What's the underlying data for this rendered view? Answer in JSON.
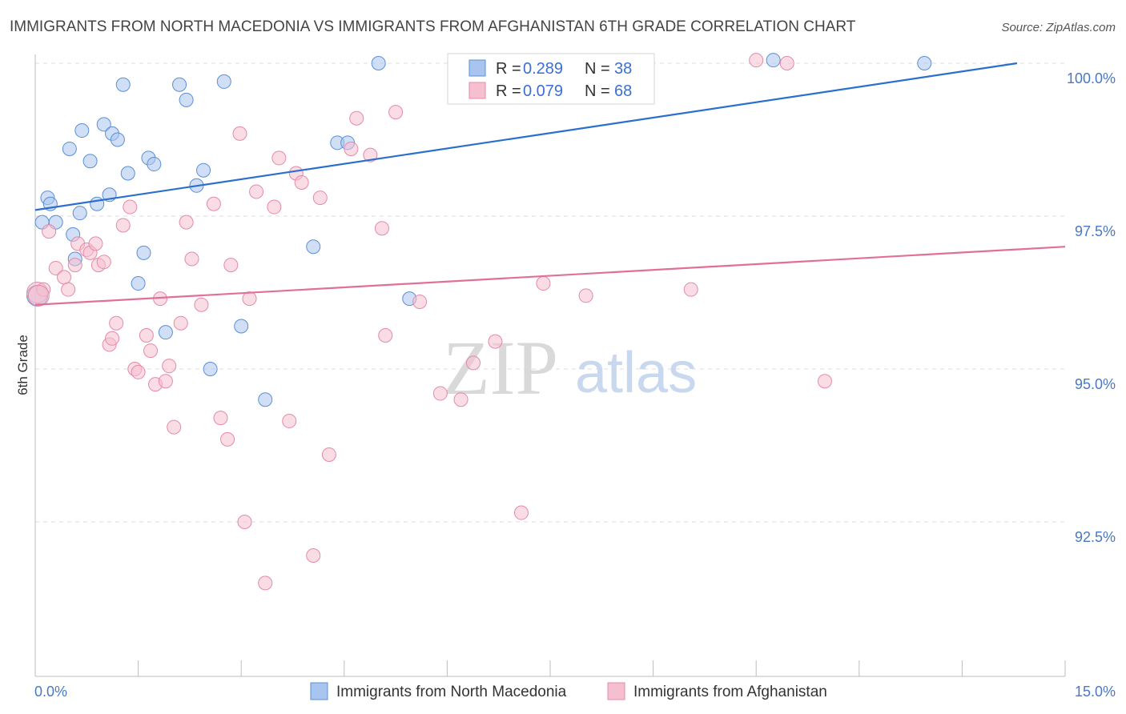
{
  "title": "IMMIGRANTS FROM NORTH MACEDONIA VS IMMIGRANTS FROM AFGHANISTAN 6TH GRADE CORRELATION CHART",
  "source": "Source: ZipAtlas.com",
  "watermark": {
    "zip": "ZIP",
    "atlas": "atlas"
  },
  "colors": {
    "blue_fill": "#a9c5ef",
    "blue_stroke": "#5b8fd6",
    "blue_line": "#2a6fce",
    "pink_fill": "#f6bfd0",
    "pink_stroke": "#e58aa8",
    "pink_line": "#e0709a",
    "grid": "#dcdcdc",
    "axis_text": "#4a78c4"
  },
  "legend_box": {
    "rows": [
      {
        "r_label": "R =",
        "r_value": "0.289",
        "n_label": "N =",
        "n_value": "38"
      },
      {
        "r_label": "R =",
        "r_value": "0.079",
        "n_label": "N =",
        "n_value": "68"
      }
    ]
  },
  "chart_data": {
    "type": "scatter",
    "title": "IMMIGRANTS FROM NORTH MACEDONIA VS IMMIGRANTS FROM AFGHANISTAN 6TH GRADE CORRELATION CHART",
    "xlabel": "",
    "ylabel": "6th Grade",
    "xlim": [
      0,
      15
    ],
    "ylim": [
      90.2,
      100.4
    ],
    "x_tick_labels": [
      {
        "value": 0,
        "label": "0.0%"
      },
      {
        "value": 15,
        "label": "15.0%"
      }
    ],
    "x_minor_ticks": [
      1.5,
      3.0,
      4.5,
      6.0,
      7.5,
      9.0,
      10.5,
      12.0,
      13.5,
      15.0
    ],
    "y_ticks": [
      {
        "value": 100.0,
        "label": "100.0%"
      },
      {
        "value": 97.5,
        "label": "97.5%"
      },
      {
        "value": 95.0,
        "label": "95.0%"
      },
      {
        "value": 92.5,
        "label": "92.5%"
      }
    ],
    "grid": true,
    "legend_position": "bottom",
    "series": [
      {
        "name": "Immigrants from North Macedonia",
        "color": "blue",
        "r": 0.289,
        "n": 38,
        "trend": {
          "x": [
            0,
            14.3
          ],
          "y": [
            97.6,
            100.0
          ]
        },
        "points": [
          [
            0.03,
            96.2
          ],
          [
            0.1,
            97.4
          ],
          [
            0.18,
            97.8
          ],
          [
            0.22,
            97.7
          ],
          [
            0.3,
            97.4
          ],
          [
            0.5,
            98.6
          ],
          [
            0.55,
            97.2
          ],
          [
            0.58,
            96.8
          ],
          [
            0.68,
            98.9
          ],
          [
            0.65,
            97.55
          ],
          [
            0.8,
            98.4
          ],
          [
            0.9,
            97.7
          ],
          [
            1.0,
            99.0
          ],
          [
            1.08,
            97.85
          ],
          [
            1.12,
            98.85
          ],
          [
            1.2,
            98.75
          ],
          [
            1.28,
            99.65
          ],
          [
            1.35,
            98.2
          ],
          [
            1.5,
            96.4
          ],
          [
            1.58,
            96.9
          ],
          [
            1.65,
            98.45
          ],
          [
            1.73,
            98.35
          ],
          [
            1.9,
            95.6
          ],
          [
            2.1,
            99.65
          ],
          [
            2.2,
            99.4
          ],
          [
            2.35,
            98.0
          ],
          [
            2.45,
            98.25
          ],
          [
            2.55,
            95.0
          ],
          [
            2.75,
            99.7
          ],
          [
            3.0,
            95.7
          ],
          [
            3.35,
            94.5
          ],
          [
            4.05,
            97.0
          ],
          [
            4.4,
            98.7
          ],
          [
            4.55,
            98.7
          ],
          [
            5.0,
            100.0
          ],
          [
            5.45,
            96.15
          ],
          [
            10.75,
            100.05
          ],
          [
            12.95,
            100.0
          ]
        ]
      },
      {
        "name": "Immigrants from Afghanistan",
        "color": "pink",
        "r": 0.079,
        "n": 68,
        "trend": {
          "x": [
            0,
            15
          ],
          "y": [
            96.05,
            97.0
          ]
        },
        "points": [
          [
            0.03,
            96.25
          ],
          [
            0.12,
            96.3
          ],
          [
            0.2,
            97.25
          ],
          [
            0.3,
            96.65
          ],
          [
            0.42,
            96.5
          ],
          [
            0.48,
            96.3
          ],
          [
            0.58,
            96.7
          ],
          [
            0.62,
            97.05
          ],
          [
            0.75,
            96.95
          ],
          [
            0.8,
            96.9
          ],
          [
            0.88,
            97.05
          ],
          [
            0.92,
            96.7
          ],
          [
            1.0,
            96.75
          ],
          [
            1.08,
            95.4
          ],
          [
            1.12,
            95.5
          ],
          [
            1.18,
            95.75
          ],
          [
            1.28,
            97.35
          ],
          [
            1.38,
            97.65
          ],
          [
            1.45,
            95.0
          ],
          [
            1.5,
            94.95
          ],
          [
            1.62,
            95.55
          ],
          [
            1.68,
            95.3
          ],
          [
            1.75,
            94.75
          ],
          [
            1.82,
            96.15
          ],
          [
            1.9,
            94.8
          ],
          [
            1.95,
            95.05
          ],
          [
            2.02,
            94.05
          ],
          [
            2.12,
            95.75
          ],
          [
            2.2,
            97.4
          ],
          [
            2.28,
            96.8
          ],
          [
            2.42,
            96.05
          ],
          [
            2.6,
            97.7
          ],
          [
            2.7,
            94.2
          ],
          [
            2.8,
            93.85
          ],
          [
            2.85,
            96.7
          ],
          [
            2.98,
            98.85
          ],
          [
            3.05,
            92.5
          ],
          [
            3.12,
            96.15
          ],
          [
            3.22,
            97.9
          ],
          [
            3.35,
            91.5
          ],
          [
            3.48,
            97.65
          ],
          [
            3.55,
            98.45
          ],
          [
            3.7,
            94.15
          ],
          [
            3.8,
            98.2
          ],
          [
            3.88,
            98.05
          ],
          [
            4.05,
            91.95
          ],
          [
            4.15,
            97.8
          ],
          [
            4.28,
            93.6
          ],
          [
            4.6,
            98.6
          ],
          [
            4.68,
            99.1
          ],
          [
            4.88,
            98.5
          ],
          [
            5.05,
            97.3
          ],
          [
            5.1,
            95.55
          ],
          [
            5.25,
            99.2
          ],
          [
            5.6,
            96.1
          ],
          [
            5.9,
            94.6
          ],
          [
            6.2,
            94.5
          ],
          [
            6.38,
            95.1
          ],
          [
            6.7,
            95.45
          ],
          [
            7.08,
            92.65
          ],
          [
            7.4,
            96.4
          ],
          [
            8.02,
            96.2
          ],
          [
            8.7,
            100.0
          ],
          [
            9.55,
            96.3
          ],
          [
            10.5,
            100.05
          ],
          [
            10.95,
            100.0
          ],
          [
            11.5,
            94.8
          ],
          [
            0.05,
            96.2
          ]
        ]
      }
    ]
  }
}
